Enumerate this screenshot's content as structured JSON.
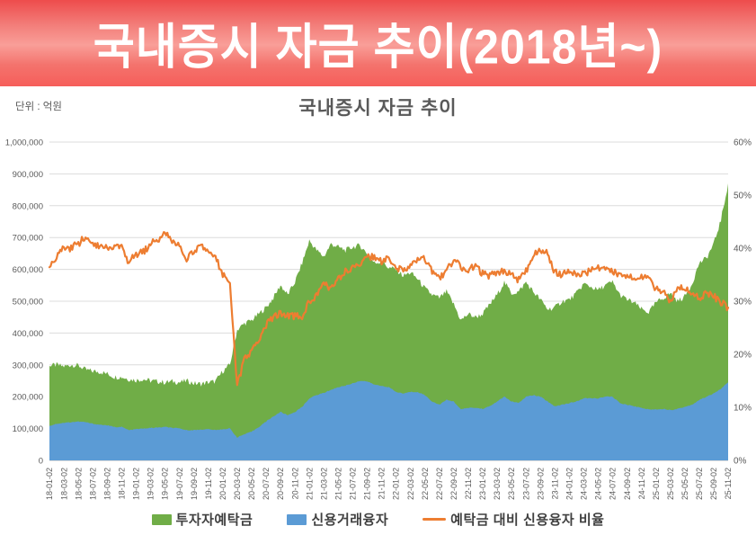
{
  "banner": {
    "title": "국내증시 자금 추이(2018년~)"
  },
  "chart": {
    "title": "국내증시 자금 추이",
    "unit_label": "단위 : 억원",
    "legend": [
      {
        "label": "투자자예탁금",
        "color": "#70AD47",
        "marker": "area"
      },
      {
        "label": "신용거래융자",
        "color": "#5B9BD5",
        "marker": "area"
      },
      {
        "label": "예탁금 대비 신용융자 비율",
        "color": "#ED7D31",
        "marker": "line"
      }
    ]
  },
  "colors": {
    "deposits_area": "#70AD47",
    "credit_area": "#5B9BD5",
    "ratio_line": "#ED7D31",
    "gridline": "#dcdcdc",
    "axis_line": "#b9b9b9",
    "axis_text": "#595959",
    "banner_red": "#f65e5a",
    "banner_text": "#ffffff"
  },
  "chart_data": {
    "type": "area",
    "combo_types": [
      "area",
      "area",
      "line"
    ],
    "title": "국내증시 자금 추이",
    "x_unit": "month",
    "x_start": "2018-01",
    "x_end": "2025-11",
    "n_points": 95,
    "grid": true,
    "legend_position": "bottom",
    "y_axis_left": {
      "min": 0,
      "max": 1000000,
      "step": 100000,
      "tick_labels": [
        "0",
        "100,000",
        "200,000",
        "300,000",
        "400,000",
        "500,000",
        "600,000",
        "700,000",
        "800,000",
        "900,000",
        "1,000,000"
      ]
    },
    "y_axis_right": {
      "min": 0,
      "max": 60,
      "step": 10,
      "tick_labels": [
        "0%",
        "10%",
        "20%",
        "30%",
        "40%",
        "50%",
        "60%"
      ]
    },
    "x_tick_labels": [
      "18-01-02",
      "18-03-02",
      "18-05-02",
      "18-07-02",
      "18-09-02",
      "18-11-02",
      "19-01-02",
      "19-03-02",
      "19-05-02",
      "19-07-02",
      "19-09-02",
      "19-11-02",
      "20-01-02",
      "20-03-02",
      "20-05-02",
      "20-07-02",
      "20-09-02",
      "20-11-02",
      "21-01-02",
      "21-03-02",
      "21-05-02",
      "21-07-02",
      "21-09-02",
      "21-11-02",
      "22-01-02",
      "22-03-02",
      "22-05-02",
      "22-07-02",
      "22-09-02",
      "22-11-02",
      "23-01-02",
      "23-03-02",
      "23-05-02",
      "23-07-02",
      "23-09-02",
      "23-11-02",
      "24-01-02",
      "24-03-02",
      "24-05-02",
      "24-07-02",
      "24-09-02",
      "24-11-02",
      "25-01-02",
      "25-03-02",
      "25-05-02",
      "25-07-02",
      "25-09-02",
      "25-11-02"
    ],
    "series": [
      {
        "name": "투자자예탁금",
        "axis": "left",
        "type": "area",
        "color": "#70AD47",
        "unit": "억원",
        "values": [
          297000,
          300000,
          295000,
          300000,
          298000,
          285000,
          280000,
          278000,
          272000,
          262000,
          262000,
          255000,
          252000,
          255000,
          250000,
          248000,
          245000,
          248000,
          245000,
          250000,
          242000,
          240000,
          245000,
          248000,
          280000,
          300000,
          410000,
          430000,
          440000,
          460000,
          480000,
          510000,
          550000,
          520000,
          560000,
          620000,
          690000,
          660000,
          640000,
          680000,
          670000,
          660000,
          670000,
          675000,
          650000,
          620000,
          625000,
          605000,
          600000,
          580000,
          590000,
          570000,
          540000,
          520000,
          510000,
          530000,
          490000,
          440000,
          460000,
          450000,
          460000,
          490000,
          520000,
          560000,
          525000,
          530000,
          560000,
          530000,
          505000,
          475000,
          480000,
          500000,
          505000,
          525000,
          555000,
          545000,
          535000,
          550000,
          560000,
          520000,
          505000,
          495000,
          475000,
          465000,
          495000,
          510000,
          525000,
          500000,
          515000,
          555000,
          620000,
          635000,
          680000,
          755000,
          870000
        ]
      },
      {
        "name": "신용거래융자",
        "axis": "left",
        "type": "area",
        "color": "#5B9BD5",
        "unit": "억원",
        "values": [
          108000,
          115000,
          118000,
          120000,
          122000,
          120000,
          115000,
          112000,
          110000,
          105000,
          105000,
          95000,
          98000,
          100000,
          102000,
          103000,
          105000,
          102000,
          100000,
          95000,
          95000,
          97000,
          98000,
          95000,
          98000,
          100000,
          72000,
          82000,
          90000,
          105000,
          122000,
          138000,
          152000,
          142000,
          152000,
          168000,
          195000,
          205000,
          212000,
          222000,
          230000,
          235000,
          242000,
          250000,
          248000,
          238000,
          234000,
          230000,
          215000,
          210000,
          215000,
          215000,
          205000,
          185000,
          175000,
          190000,
          185000,
          160000,
          165000,
          165000,
          162000,
          170000,
          185000,
          200000,
          185000,
          180000,
          200000,
          205000,
          200000,
          185000,
          170000,
          175000,
          180000,
          185000,
          195000,
          195000,
          195000,
          200000,
          200000,
          180000,
          175000,
          170000,
          165000,
          160000,
          160000,
          162000,
          158000,
          162000,
          168000,
          175000,
          190000,
          200000,
          210000,
          225000,
          245000
        ]
      },
      {
        "name": "예탁금 대비 신용융자 비율",
        "axis": "right",
        "type": "line",
        "color": "#ED7D31",
        "unit": "%",
        "values": [
          36.4,
          38.3,
          40.0,
          40.0,
          40.9,
          42.1,
          41.1,
          40.3,
          40.4,
          40.1,
          40.1,
          37.3,
          38.9,
          39.2,
          40.8,
          41.5,
          42.9,
          41.1,
          40.8,
          38.0,
          39.3,
          40.4,
          40.0,
          38.3,
          35.0,
          33.3,
          14.0,
          19.1,
          20.5,
          22.8,
          25.4,
          27.1,
          27.6,
          27.3,
          27.1,
          27.1,
          30.0,
          31.1,
          33.1,
          32.6,
          34.3,
          35.6,
          36.1,
          37.0,
          38.2,
          38.4,
          37.4,
          38.0,
          35.8,
          36.2,
          36.4,
          37.7,
          38.0,
          35.6,
          34.3,
          35.8,
          37.8,
          36.4,
          35.9,
          36.7,
          35.2,
          34.7,
          35.6,
          35.7,
          35.2,
          34.0,
          35.7,
          38.7,
          39.6,
          38.9,
          35.4,
          35.0,
          35.6,
          35.2,
          35.1,
          35.8,
          36.4,
          36.4,
          35.7,
          34.6,
          34.7,
          34.3,
          34.7,
          34.4,
          32.3,
          31.8,
          30.1,
          32.4,
          32.6,
          31.5,
          30.6,
          31.5,
          30.9,
          29.8,
          28.8
        ]
      }
    ]
  }
}
